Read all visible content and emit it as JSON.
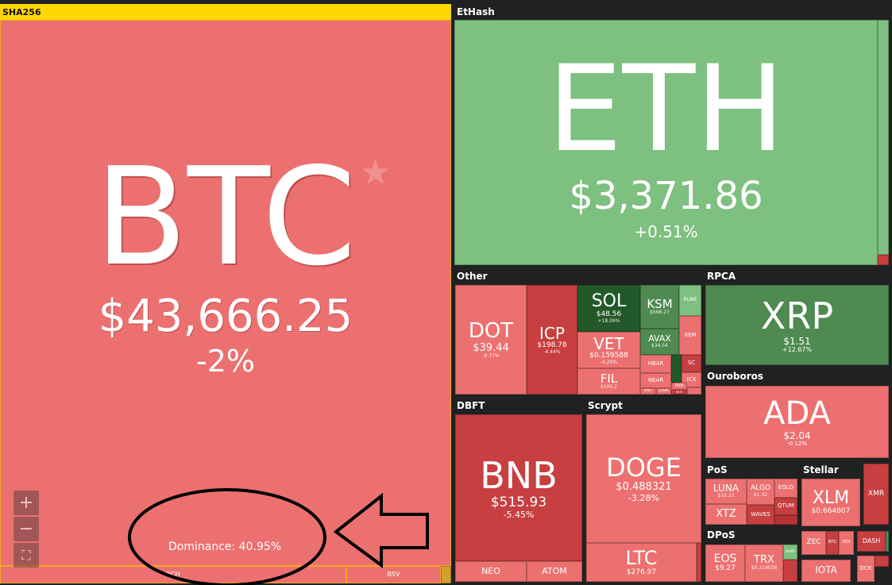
{
  "groups": {
    "sha256": "SHA256",
    "ethash": "EtHash",
    "other": "Other",
    "rpca": "RPCA",
    "ouroboros": "Ouroboros",
    "dbft": "DBFT",
    "scrypt": "Scrypt",
    "pos": "PoS",
    "stellar": "Stellar",
    "dpos": "DPoS"
  },
  "colors": {
    "header": "#ffd700",
    "down": "#ed7070",
    "down_strong": "#c73f41",
    "up": "#7dc07f",
    "up_strong": "#23592a"
  },
  "coins": {
    "btc": {
      "sym": "BTC",
      "price": "$43,666.25",
      "chg": "-2%",
      "dominance": "Dominance: 40.95%"
    },
    "eth": {
      "sym": "ETH",
      "price": "$3,371.86",
      "chg": "+0.51%"
    },
    "dot": {
      "sym": "DOT",
      "price": "$39.44",
      "chg": "-0.77%"
    },
    "icp": {
      "sym": "ICP",
      "price": "$198.78",
      "chg": "-4.44%"
    },
    "sol": {
      "sym": "SOL",
      "price": "$48.56",
      "chg": "+18.09%"
    },
    "vet": {
      "sym": "VET",
      "price": "$0.159588",
      "chg": "-4.20%"
    },
    "fil": {
      "sym": "FIL",
      "price": "$100.2"
    },
    "ksm": {
      "sym": "KSM",
      "price": "$568.27"
    },
    "avax": {
      "sym": "AVAX",
      "price": "$34.54"
    },
    "rune": {
      "sym": "RUNE"
    },
    "xem": {
      "sym": "XEM"
    },
    "hbar": {
      "sym": "HBAR"
    },
    "near": {
      "sym": "NEAR"
    },
    "sc": {
      "sym": "SC"
    },
    "icx": {
      "sym": "ICX"
    },
    "ont": {
      "sym": "ONT"
    },
    "dgb": {
      "sym": "DGB"
    },
    "rvn": {
      "sym": "RVN"
    },
    "stx": {
      "sym": "STX"
    },
    "xrp": {
      "sym": "XRP",
      "price": "$1.51",
      "chg": "+12.67%"
    },
    "ada": {
      "sym": "ADA",
      "price": "$2.04",
      "chg": "-0.12%"
    },
    "bnb": {
      "sym": "BNB",
      "price": "$515.93",
      "chg": "-5.45%"
    },
    "neo": {
      "sym": "NEO"
    },
    "atom": {
      "sym": "ATOM"
    },
    "doge": {
      "sym": "DOGE",
      "price": "$0.488321",
      "chg": "-3.28%"
    },
    "ltc": {
      "sym": "LTC",
      "price": "$276.97"
    },
    "luna": {
      "sym": "LUNA",
      "price": "$15.23"
    },
    "xtz": {
      "sym": "XTZ"
    },
    "algo": {
      "sym": "ALGO",
      "price": "$1.32"
    },
    "egld": {
      "sym": "EGLD"
    },
    "qtum": {
      "sym": "QTUM"
    },
    "waves": {
      "sym": "WAVES"
    },
    "xlm": {
      "sym": "XLM",
      "price": "$0.664807"
    },
    "xmr": {
      "sym": "XMR"
    },
    "eos": {
      "sym": "EOS",
      "price": "$9.27"
    },
    "trx": {
      "sym": "TRX",
      "price": "$0.114026"
    },
    "nano": {
      "sym": "NANO"
    },
    "zec": {
      "sym": "ZEC"
    },
    "btg": {
      "sym": "BTG"
    },
    "zen": {
      "sym": "ZEN"
    },
    "dash": {
      "sym": "DASH"
    },
    "iota": {
      "sym": "IOTA"
    },
    "dcr": {
      "sym": "DCR"
    },
    "bch": {
      "sym": "BCH"
    },
    "bsv": {
      "sym": "BSV"
    }
  },
  "controls": {
    "zoom_in": "+",
    "zoom_out": "−",
    "fullscreen": "⛶"
  }
}
